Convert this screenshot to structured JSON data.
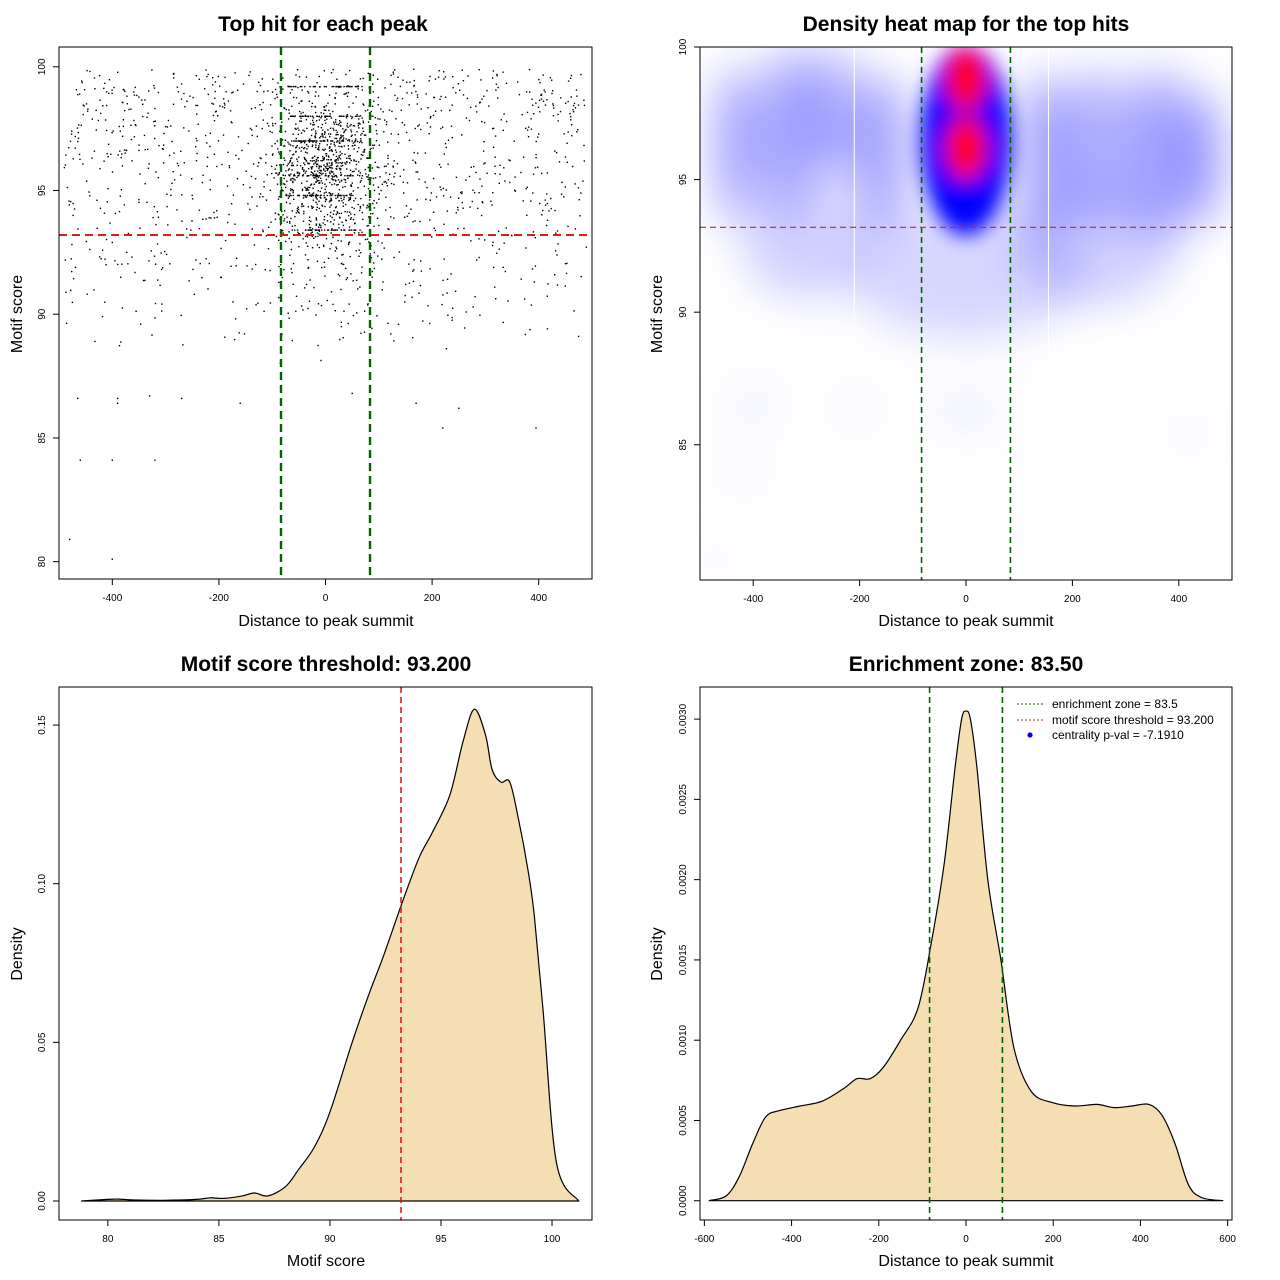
{
  "chart_data": [
    {
      "id": "scatter",
      "type": "scatter",
      "title": "Top hit for each peak",
      "xlabel": "Distance to peak summit",
      "ylabel": "Motif score",
      "xlim": [
        -500,
        500
      ],
      "ylim": [
        79.3,
        100.8
      ],
      "xticks": [
        -400,
        -200,
        0,
        200,
        400
      ],
      "xtick_labels": [
        "-400",
        "-200",
        "0",
        "200",
        "400"
      ],
      "yticks": [
        80,
        85,
        90,
        95,
        100
      ],
      "ytick_labels": [
        "80",
        "85",
        "90",
        "95",
        "100"
      ],
      "point_count_approx": 2000,
      "point_distribution": "dense cluster within +/-80 of summit around scores 92-99; sparse uniform background across -500..500 for scores 88-100; few outliers down to 80",
      "outliers": [
        {
          "x": -480,
          "y": 80.9
        },
        {
          "x": -400,
          "y": 80.1
        },
        {
          "x": -460,
          "y": 84.1
        },
        {
          "x": -400,
          "y": 84.1
        },
        {
          "x": -320,
          "y": 84.1
        },
        {
          "x": -465,
          "y": 86.6
        },
        {
          "x": -390,
          "y": 86.6
        },
        {
          "x": -390,
          "y": 86.4
        },
        {
          "x": -330,
          "y": 86.7
        },
        {
          "x": -270,
          "y": 86.6
        },
        {
          "x": -160,
          "y": 86.4
        },
        {
          "x": 50,
          "y": 86.8
        },
        {
          "x": 170,
          "y": 86.4
        },
        {
          "x": 250,
          "y": 86.2
        },
        {
          "x": 220,
          "y": 85.4
        },
        {
          "x": 395,
          "y": 85.4
        }
      ],
      "vlines": [
        {
          "x": -83.5,
          "color": "#006400",
          "style": "dashed"
        },
        {
          "x": 83.5,
          "color": "#006400",
          "style": "dashed"
        }
      ],
      "hlines": [
        {
          "y": 93.2,
          "color": "#dd1c1c",
          "style": "dashed"
        }
      ]
    },
    {
      "id": "heatmap",
      "type": "heatmap",
      "title": "Density heat map for the top hits",
      "xlabel": "Distance to peak summit",
      "ylabel": "Motif score",
      "xlim": [
        -500,
        500
      ],
      "ylim": [
        79.9,
        100
      ],
      "xticks": [
        -400,
        -200,
        0,
        200,
        400
      ],
      "xtick_labels": [
        "-400",
        "-200",
        "0",
        "200",
        "400"
      ],
      "yticks": [
        85,
        90,
        95,
        100
      ],
      "ytick_labels": [
        "85",
        "90",
        "95",
        "100"
      ],
      "colors": [
        "#ffffff",
        "#0000ff",
        "#ff0000"
      ],
      "hotspots": [
        {
          "x": 0,
          "y": 98.8,
          "intensity": "high"
        },
        {
          "x": 0,
          "y": 96.2,
          "intensity": "high"
        }
      ],
      "vlines": [
        {
          "x": -83.5,
          "color": "#006400",
          "style": "dashed"
        },
        {
          "x": 83.5,
          "color": "#006400",
          "style": "dashed"
        }
      ],
      "hlines": [
        {
          "y": 93.2,
          "color": "#dd1c1c",
          "style": "dashed"
        }
      ]
    },
    {
      "id": "score_density",
      "type": "area",
      "title": "Motif score threshold: 93.200",
      "xlabel": "Motif score",
      "ylabel": "Density",
      "xlim": [
        77.8,
        101.8
      ],
      "ylim": [
        -0.006,
        0.162
      ],
      "xticks": [
        80,
        85,
        90,
        95,
        100
      ],
      "xtick_labels": [
        "80",
        "85",
        "90",
        "95",
        "100"
      ],
      "yticks": [
        0,
        0.05,
        0.1,
        0.15
      ],
      "ytick_labels": [
        "0.00",
        "0.05",
        "0.10",
        "0.15"
      ],
      "fill_color": "#f5deb3",
      "x": [
        78.8,
        80.0,
        80.5,
        81.2,
        82.5,
        84.0,
        84.6,
        85.2,
        86.0,
        86.6,
        87.2,
        88.0,
        88.6,
        89.3,
        90.0,
        91.0,
        91.8,
        92.4,
        93.2,
        94.0,
        94.6,
        95.4,
        96.0,
        96.5,
        97.0,
        97.3,
        97.7,
        98.1,
        98.5,
        98.9,
        99.2,
        99.6,
        100.2,
        101.2
      ],
      "values": [
        0.0,
        0.0005,
        0.0006,
        0.0003,
        0.0002,
        0.0005,
        0.001,
        0.0008,
        0.0015,
        0.0025,
        0.0016,
        0.0045,
        0.01,
        0.017,
        0.028,
        0.05,
        0.066,
        0.077,
        0.093,
        0.108,
        0.116,
        0.128,
        0.145,
        0.155,
        0.147,
        0.136,
        0.132,
        0.132,
        0.12,
        0.105,
        0.09,
        0.06,
        0.012,
        0.0
      ],
      "vlines": [
        {
          "x": 93.2,
          "color": "#dd1c1c",
          "style": "dashed"
        }
      ]
    },
    {
      "id": "distance_density",
      "type": "area",
      "title": "Enrichment zone: 83.50",
      "xlabel": "Distance to peak summit",
      "ylabel": "Density",
      "xlim": [
        -610,
        610
      ],
      "ylim": [
        -0.00012,
        0.0032
      ],
      "xticks": [
        -600,
        -400,
        -200,
        0,
        200,
        400,
        600
      ],
      "xtick_labels": [
        "-600",
        "-400",
        "-200",
        "0",
        "200",
        "400",
        "600"
      ],
      "yticks": [
        0,
        0.0005,
        0.001,
        0.0015,
        0.002,
        0.0025,
        0.003
      ],
      "ytick_labels": [
        "0.0000",
        "0.0005",
        "0.0010",
        "0.0015",
        "0.0020",
        "0.0025",
        "0.0030"
      ],
      "fill_color": "#f5deb3",
      "x": [
        -590,
        -550,
        -520,
        -490,
        -460,
        -430,
        -380,
        -330,
        -280,
        -250,
        -220,
        -190,
        -150,
        -110,
        -80,
        -50,
        -25,
        -10,
        0,
        10,
        25,
        50,
        80,
        110,
        150,
        200,
        250,
        300,
        340,
        380,
        420,
        450,
        480,
        510,
        540,
        590
      ],
      "values": [
        0.0,
        3e-05,
        0.00015,
        0.00035,
        0.00052,
        0.00056,
        0.00059,
        0.00062,
        0.0007,
        0.00076,
        0.00076,
        0.00083,
        0.001,
        0.0012,
        0.0016,
        0.0021,
        0.0027,
        0.003,
        0.00305,
        0.003,
        0.0027,
        0.002,
        0.0015,
        0.00095,
        0.00068,
        0.00061,
        0.00059,
        0.0006,
        0.00058,
        0.00059,
        0.0006,
        0.00053,
        0.00035,
        0.0001,
        2e-05,
        0.0
      ],
      "vlines": [
        {
          "x": -83.5,
          "color": "#006400",
          "style": "dashed"
        },
        {
          "x": 83.5,
          "color": "#006400",
          "style": "dashed"
        }
      ],
      "legend": {
        "position": "top-right",
        "entries": [
          {
            "label": "enrichment zone = 83.5",
            "color": "#006400",
            "marker": "dotted-line"
          },
          {
            "label": "motif score threshold = 93.200",
            "color": "#dd1c1c",
            "marker": "dotted-line"
          },
          {
            "label": "centrality p-val = -7.1910",
            "color": "#0000ff",
            "marker": "point"
          }
        ]
      }
    }
  ]
}
